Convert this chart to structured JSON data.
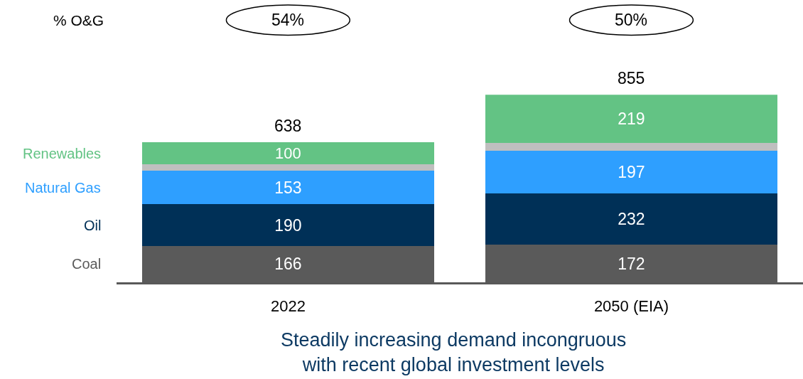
{
  "chart_data": {
    "type": "bar",
    "stacked": true,
    "categories": [
      "2022",
      "2050 (EIA)"
    ],
    "series": [
      {
        "name": "Coal",
        "color": "#5a5a5a",
        "values": [
          166,
          172
        ],
        "value_labels": [
          "166",
          "172"
        ]
      },
      {
        "name": "Oil",
        "color": "#003057",
        "values": [
          190,
          232
        ],
        "value_labels": [
          "190",
          "232"
        ]
      },
      {
        "name": "Natural Gas",
        "color": "#2e9fff",
        "values": [
          153,
          197
        ],
        "value_labels": [
          "153",
          "197"
        ]
      },
      {
        "color": "#bfbfbf",
        "values": [
          29,
          35
        ]
      },
      {
        "name": "Renewables",
        "color": "#63c384",
        "values": [
          100,
          219
        ],
        "value_labels": [
          "100",
          "219"
        ]
      }
    ],
    "totals": [
      "638",
      "855"
    ],
    "annotations": [
      "% O&G",
      "54%",
      "50%",
      "Steadily increasing demand incongruous\nwith recent global investment levels"
    ],
    "legend": false,
    "grid": false
  }
}
